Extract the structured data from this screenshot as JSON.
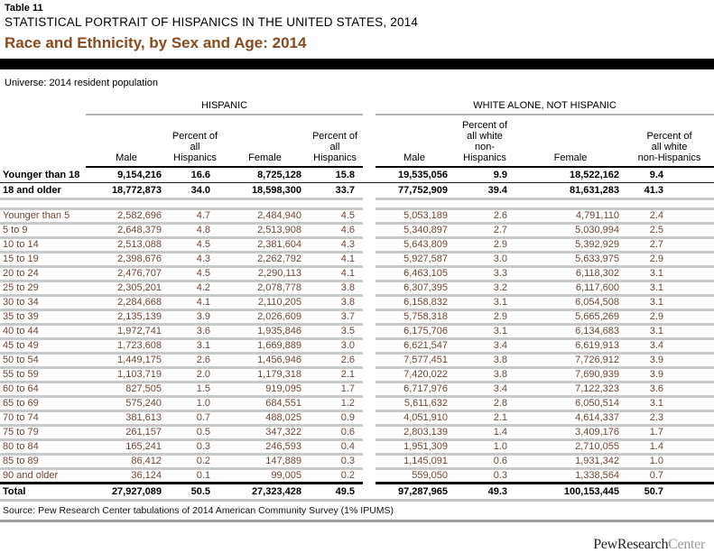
{
  "header": {
    "table_number": "Table 11",
    "report_title": "STATISTICAL PORTRAIT OF HISPANICS IN THE UNITED STATES, 2014",
    "title": "Race and Ethnicity, by Sex and Age: 2014",
    "universe": "Universe: 2014 resident population"
  },
  "colors": {
    "title_brown": "#8a4a1e",
    "data_text_brown": "#6e4633",
    "row_separator_gray": "#c9c9c9",
    "black_bar": "#000000",
    "source_rule_gray": "#9e9e9e"
  },
  "table": {
    "groups": [
      {
        "label": "HISPANIC",
        "columns": [
          "Male",
          "Percent of all\nHispanics",
          "Female",
          "Percent of all\nHispanics"
        ]
      },
      {
        "label": "WHITE ALONE, NOT HISPANIC",
        "columns": [
          "Male",
          "Percent of\nall white\nnon-Hispanics",
          "Female",
          "Percent of\nall white\nnon-Hispanics"
        ]
      }
    ],
    "rows": [
      {
        "label": "Younger than 18",
        "type": "summary-first",
        "values": [
          "9,154,216",
          "16.6",
          "8,725,128",
          "15.8",
          "19,535,056",
          "9.9",
          "18,522,162",
          "9.4"
        ]
      },
      {
        "label": "18 and older",
        "type": "summary",
        "values": [
          "18,772,873",
          "34.0",
          "18,598,300",
          "33.7",
          "77,752,909",
          "39.4",
          "81,631,283",
          "41.3"
        ]
      },
      {
        "label": "",
        "type": "spacer",
        "values": []
      },
      {
        "label": "Younger than 5",
        "type": "age",
        "values": [
          "2,582,696",
          "4.7",
          "2,484,940",
          "4.5",
          "5,053,189",
          "2.6",
          "4,791,110",
          "2.4"
        ]
      },
      {
        "label": "5 to 9",
        "type": "age",
        "values": [
          "2,648,379",
          "4.8",
          "2,513,908",
          "4.6",
          "5,340,897",
          "2.7",
          "5,030,994",
          "2.5"
        ]
      },
      {
        "label": "10 to 14",
        "type": "age",
        "values": [
          "2,513,088",
          "4.5",
          "2,381,604",
          "4.3",
          "5,643,809",
          "2.9",
          "5,392,929",
          "2.7"
        ]
      },
      {
        "label": "15 to 19",
        "type": "age",
        "values": [
          "2,398,676",
          "4.3",
          "2,262,792",
          "4.1",
          "5,927,587",
          "3.0",
          "5,633,975",
          "2.9"
        ]
      },
      {
        "label": "20 to 24",
        "type": "age",
        "values": [
          "2,476,707",
          "4.5",
          "2,290,113",
          "4.1",
          "6,463,105",
          "3.3",
          "6,118,302",
          "3.1"
        ]
      },
      {
        "label": "25 to 29",
        "type": "age",
        "values": [
          "2,305,201",
          "4.2",
          "2,078,778",
          "3.8",
          "6,307,395",
          "3.2",
          "6,117,600",
          "3.1"
        ]
      },
      {
        "label": "30 to 34",
        "type": "age",
        "values": [
          "2,284,668",
          "4.1",
          "2,110,205",
          "3.8",
          "6,158,832",
          "3.1",
          "6,054,508",
          "3.1"
        ]
      },
      {
        "label": "35 to 39",
        "type": "age",
        "values": [
          "2,135,139",
          "3.9",
          "2,026,609",
          "3.7",
          "5,758,318",
          "2.9",
          "5,665,269",
          "2.9"
        ]
      },
      {
        "label": "40 to 44",
        "type": "age",
        "values": [
          "1,972,741",
          "3.6",
          "1,935,846",
          "3.5",
          "6,175,706",
          "3.1",
          "6,134,683",
          "3.1"
        ]
      },
      {
        "label": "45 to 49",
        "type": "age",
        "values": [
          "1,723,608",
          "3.1",
          "1,669,889",
          "3.0",
          "6,621,547",
          "3.4",
          "6,619,913",
          "3.4"
        ]
      },
      {
        "label": "50 to 54",
        "type": "age",
        "values": [
          "1,449,175",
          "2.6",
          "1,456,946",
          "2.6",
          "7,577,451",
          "3.8",
          "7,726,912",
          "3.9"
        ]
      },
      {
        "label": "55 to 59",
        "type": "age",
        "values": [
          "1,103,719",
          "2.0",
          "1,179,318",
          "2.1",
          "7,420,022",
          "3.8",
          "7,690,939",
          "3.9"
        ]
      },
      {
        "label": "60 to 64",
        "type": "age",
        "values": [
          "827,505",
          "1.5",
          "919,095",
          "1.7",
          "6,717,976",
          "3.4",
          "7,122,323",
          "3.6"
        ]
      },
      {
        "label": "65 to 69",
        "type": "age",
        "values": [
          "575,240",
          "1.0",
          "684,551",
          "1.2",
          "5,611,632",
          "2.8",
          "6,050,514",
          "3.1"
        ]
      },
      {
        "label": "70 to 74",
        "type": "age",
        "values": [
          "381,613",
          "0.7",
          "488,025",
          "0.9",
          "4,051,910",
          "2.1",
          "4,614,337",
          "2.3"
        ]
      },
      {
        "label": "75 to 79",
        "type": "age",
        "values": [
          "261,157",
          "0.5",
          "347,322",
          "0.6",
          "2,803,139",
          "1.4",
          "3,409,176",
          "1.7"
        ]
      },
      {
        "label": "80 to 84",
        "type": "age",
        "values": [
          "165,241",
          "0.3",
          "246,593",
          "0.4",
          "1,951,309",
          "1.0",
          "2,710,055",
          "1.4"
        ]
      },
      {
        "label": "85 to 89",
        "type": "age",
        "values": [
          "86,412",
          "0.2",
          "147,889",
          "0.3",
          "1,145,091",
          "0.6",
          "1,931,342",
          "1.0"
        ]
      },
      {
        "label": "90 and older",
        "type": "age-last",
        "values": [
          "36,124",
          "0.1",
          "99,005",
          "0.2",
          "559,050",
          "0.3",
          "1,338,564",
          "0.7"
        ]
      },
      {
        "label": "Total",
        "type": "total",
        "values": [
          "27,927,089",
          "50.5",
          "27,323,428",
          "49.5",
          "97,287,965",
          "49.3",
          "100,153,445",
          "50.7"
        ]
      }
    ]
  },
  "footer": {
    "source": "Source: Pew Research Center tabulations of 2014 American Community Survey (1% IPUMS)",
    "logo_primary": "PewResearch",
    "logo_secondary": "Center"
  }
}
